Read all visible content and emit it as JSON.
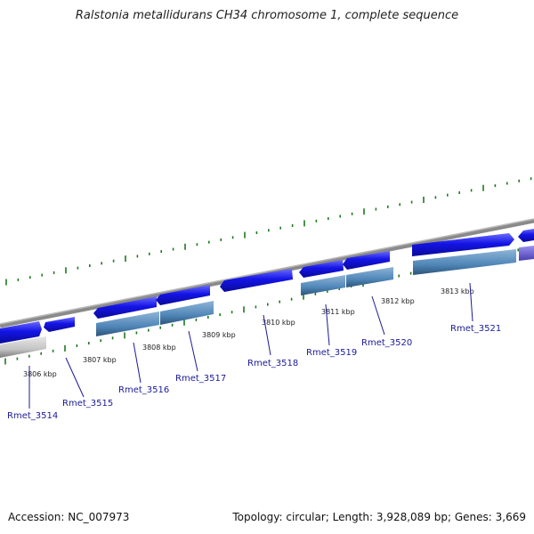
{
  "title": "Ralstonia metallidurans CH34 chromosome 1, complete sequence",
  "footer": {
    "accession": "Accession: NC_007973",
    "summary": "Topology: circular; Length: 3,928,089 bp; Genes: 3,669"
  },
  "kbp_labels": [
    "3806 kbp",
    "3807 kbp",
    "3808 kbp",
    "3809 kbp",
    "3810 kbp",
    "3811 kbp",
    "3812 kbp",
    "3813 kbp"
  ],
  "gene_labels": [
    "Rmet_3514",
    "Rmet_3515",
    "Rmet_3516",
    "Rmet_3517",
    "Rmet_3518",
    "Rmet_3519",
    "Rmet_3520",
    "Rmet_3521"
  ],
  "colors": {
    "backbone": "#8a8a8a",
    "cds": "#1414e6",
    "feature": "#4f86b8",
    "feature_gray": "#c4c4c4",
    "feature_purple": "#6a5acd",
    "tick": "#1e7a1e",
    "label_text": "#1a1a99"
  }
}
